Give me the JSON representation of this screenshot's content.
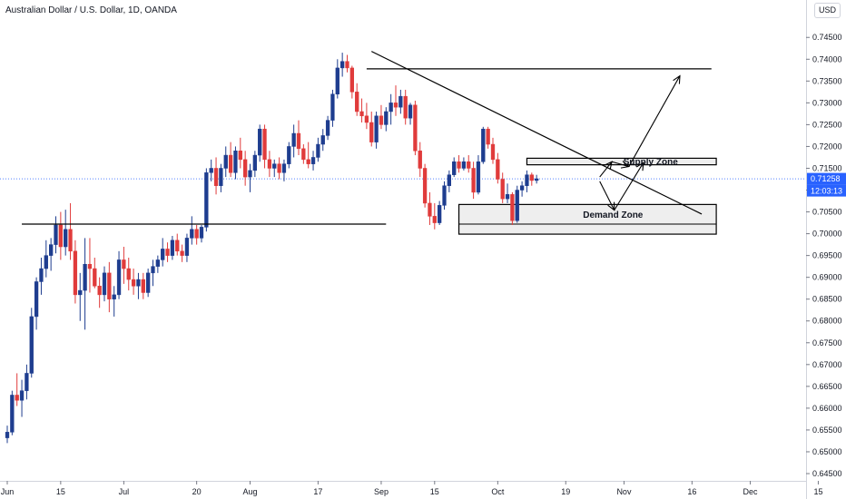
{
  "header": {
    "title": "Australian Dollar / U.S. Dollar, 1D, OANDA",
    "currency_button": "USD"
  },
  "chart_data": {
    "type": "candlestick",
    "title": "Australian Dollar / U.S. Dollar, 1D, OANDA",
    "ylim": [
      0.645,
      0.7515
    ],
    "y_ticks": [
      "0.74500",
      "0.74000",
      "0.73500",
      "0.73000",
      "0.72500",
      "0.72000",
      "0.71500",
      "0.71000",
      "0.70500",
      "0.70000",
      "0.69500",
      "0.69000",
      "0.68500",
      "0.68000",
      "0.67500",
      "0.67000",
      "0.66500",
      "0.66000",
      "0.65500",
      "0.65000",
      "0.64500"
    ],
    "x_ticks": [
      "Jun",
      "15",
      "Jul",
      "20",
      "Aug",
      "17",
      "Sep",
      "15",
      "Oct",
      "19",
      "Nov",
      "16",
      "Dec",
      "15"
    ],
    "x_tick_days": [
      0,
      11,
      24,
      39,
      50,
      64,
      77,
      88,
      101,
      115,
      127,
      141,
      153,
      167
    ],
    "last_day": 121,
    "current_price": "0.71258",
    "countdown": "12:03:13",
    "colors": {
      "up": "#1e3d8f",
      "down": "#e03b3b",
      "price_line": "#2962ff",
      "zone_fill": "#e8e8e8",
      "drawing": "#000000"
    },
    "drawings": {
      "support_line": {
        "day_start": 3,
        "day_end": 78,
        "price": 0.7022
      },
      "resistance_line": {
        "day_start": 74,
        "day_end": 145,
        "price": 0.7378
      },
      "trendline": {
        "start": [
          75,
          0.7418
        ],
        "end": [
          143,
          0.7045
        ]
      },
      "demand_zone": {
        "label": "Demand Zone",
        "day_start": 93,
        "day_end": 146,
        "price_top": 0.7067,
        "price_bottom": 0.6999
      },
      "supply_zone": {
        "label": "Supply Zone",
        "day_start": 107,
        "day_end": 146,
        "price_top": 0.7173,
        "price_bottom": 0.7158
      },
      "arrows": [
        {
          "from": [
            122,
            0.713
          ],
          "to": [
            124.5,
            0.7165
          ]
        },
        {
          "from": [
            124.5,
            0.7165
          ],
          "to": [
            128,
            0.7154
          ]
        },
        {
          "from": [
            128,
            0.7154
          ],
          "to": [
            138.5,
            0.7362
          ]
        },
        {
          "from": [
            122,
            0.712
          ],
          "to": [
            125,
            0.7054
          ]
        },
        {
          "from": [
            125,
            0.7054
          ],
          "to": [
            131,
            0.7163
          ]
        }
      ]
    },
    "candles": [
      {
        "o": 0.6532,
        "h": 0.656,
        "l": 0.652,
        "c": 0.6545
      },
      {
        "o": 0.6545,
        "h": 0.664,
        "l": 0.6538,
        "c": 0.663
      },
      {
        "o": 0.663,
        "h": 0.668,
        "l": 0.6605,
        "c": 0.6618
      },
      {
        "o": 0.6618,
        "h": 0.6665,
        "l": 0.658,
        "c": 0.664
      },
      {
        "o": 0.664,
        "h": 0.67,
        "l": 0.662,
        "c": 0.668
      },
      {
        "o": 0.668,
        "h": 0.683,
        "l": 0.667,
        "c": 0.681
      },
      {
        "o": 0.681,
        "h": 0.69,
        "l": 0.678,
        "c": 0.689
      },
      {
        "o": 0.689,
        "h": 0.6945,
        "l": 0.686,
        "c": 0.692
      },
      {
        "o": 0.692,
        "h": 0.6985,
        "l": 0.69,
        "c": 0.695
      },
      {
        "o": 0.695,
        "h": 0.699,
        "l": 0.6915,
        "c": 0.6975
      },
      {
        "o": 0.6975,
        "h": 0.704,
        "l": 0.6955,
        "c": 0.702
      },
      {
        "o": 0.702,
        "h": 0.705,
        "l": 0.694,
        "c": 0.697
      },
      {
        "o": 0.697,
        "h": 0.7055,
        "l": 0.695,
        "c": 0.701
      },
      {
        "o": 0.701,
        "h": 0.707,
        "l": 0.694,
        "c": 0.696
      },
      {
        "o": 0.696,
        "h": 0.6985,
        "l": 0.684,
        "c": 0.686
      },
      {
        "o": 0.686,
        "h": 0.691,
        "l": 0.68,
        "c": 0.687
      },
      {
        "o": 0.687,
        "h": 0.699,
        "l": 0.678,
        "c": 0.693
      },
      {
        "o": 0.693,
        "h": 0.699,
        "l": 0.6865,
        "c": 0.692
      },
      {
        "o": 0.692,
        "h": 0.6945,
        "l": 0.6875,
        "c": 0.688
      },
      {
        "o": 0.688,
        "h": 0.69,
        "l": 0.683,
        "c": 0.686
      },
      {
        "o": 0.686,
        "h": 0.6925,
        "l": 0.6845,
        "c": 0.691
      },
      {
        "o": 0.691,
        "h": 0.6935,
        "l": 0.682,
        "c": 0.685
      },
      {
        "o": 0.685,
        "h": 0.688,
        "l": 0.681,
        "c": 0.686
      },
      {
        "o": 0.686,
        "h": 0.696,
        "l": 0.685,
        "c": 0.694
      },
      {
        "o": 0.694,
        "h": 0.697,
        "l": 0.6885,
        "c": 0.692
      },
      {
        "o": 0.692,
        "h": 0.6945,
        "l": 0.687,
        "c": 0.6895
      },
      {
        "o": 0.6895,
        "h": 0.692,
        "l": 0.686,
        "c": 0.688
      },
      {
        "o": 0.688,
        "h": 0.691,
        "l": 0.685,
        "c": 0.6895
      },
      {
        "o": 0.6895,
        "h": 0.691,
        "l": 0.685,
        "c": 0.6865
      },
      {
        "o": 0.6865,
        "h": 0.692,
        "l": 0.6855,
        "c": 0.691
      },
      {
        "o": 0.691,
        "h": 0.694,
        "l": 0.688,
        "c": 0.6925
      },
      {
        "o": 0.6925,
        "h": 0.695,
        "l": 0.691,
        "c": 0.694
      },
      {
        "o": 0.694,
        "h": 0.699,
        "l": 0.6925,
        "c": 0.6965
      },
      {
        "o": 0.6965,
        "h": 0.698,
        "l": 0.6935,
        "c": 0.695
      },
      {
        "o": 0.695,
        "h": 0.6995,
        "l": 0.694,
        "c": 0.6985
      },
      {
        "o": 0.6985,
        "h": 0.7,
        "l": 0.695,
        "c": 0.696
      },
      {
        "o": 0.696,
        "h": 0.6975,
        "l": 0.6935,
        "c": 0.695
      },
      {
        "o": 0.695,
        "h": 0.7,
        "l": 0.6935,
        "c": 0.699
      },
      {
        "o": 0.699,
        "h": 0.704,
        "l": 0.6975,
        "c": 0.701
      },
      {
        "o": 0.701,
        "h": 0.702,
        "l": 0.6975,
        "c": 0.699
      },
      {
        "o": 0.699,
        "h": 0.702,
        "l": 0.698,
        "c": 0.7015
      },
      {
        "o": 0.7015,
        "h": 0.715,
        "l": 0.7005,
        "c": 0.714
      },
      {
        "o": 0.714,
        "h": 0.717,
        "l": 0.712,
        "c": 0.715
      },
      {
        "o": 0.715,
        "h": 0.7175,
        "l": 0.709,
        "c": 0.711
      },
      {
        "o": 0.711,
        "h": 0.716,
        "l": 0.7095,
        "c": 0.715
      },
      {
        "o": 0.715,
        "h": 0.72,
        "l": 0.713,
        "c": 0.718
      },
      {
        "o": 0.718,
        "h": 0.721,
        "l": 0.713,
        "c": 0.714
      },
      {
        "o": 0.714,
        "h": 0.72,
        "l": 0.7125,
        "c": 0.719
      },
      {
        "o": 0.719,
        "h": 0.722,
        "l": 0.715,
        "c": 0.717
      },
      {
        "o": 0.717,
        "h": 0.719,
        "l": 0.711,
        "c": 0.713
      },
      {
        "o": 0.713,
        "h": 0.716,
        "l": 0.7095,
        "c": 0.7145
      },
      {
        "o": 0.7145,
        "h": 0.719,
        "l": 0.713,
        "c": 0.718
      },
      {
        "o": 0.718,
        "h": 0.725,
        "l": 0.7165,
        "c": 0.724
      },
      {
        "o": 0.724,
        "h": 0.725,
        "l": 0.715,
        "c": 0.717
      },
      {
        "o": 0.717,
        "h": 0.719,
        "l": 0.713,
        "c": 0.715
      },
      {
        "o": 0.715,
        "h": 0.717,
        "l": 0.713,
        "c": 0.716
      },
      {
        "o": 0.716,
        "h": 0.7175,
        "l": 0.7125,
        "c": 0.714
      },
      {
        "o": 0.714,
        "h": 0.717,
        "l": 0.712,
        "c": 0.716
      },
      {
        "o": 0.716,
        "h": 0.721,
        "l": 0.715,
        "c": 0.72
      },
      {
        "o": 0.72,
        "h": 0.725,
        "l": 0.7175,
        "c": 0.723
      },
      {
        "o": 0.723,
        "h": 0.726,
        "l": 0.718,
        "c": 0.7195
      },
      {
        "o": 0.7195,
        "h": 0.7205,
        "l": 0.716,
        "c": 0.717
      },
      {
        "o": 0.717,
        "h": 0.721,
        "l": 0.715,
        "c": 0.716
      },
      {
        "o": 0.716,
        "h": 0.719,
        "l": 0.7145,
        "c": 0.7175
      },
      {
        "o": 0.7175,
        "h": 0.722,
        "l": 0.7165,
        "c": 0.7205
      },
      {
        "o": 0.7205,
        "h": 0.724,
        "l": 0.719,
        "c": 0.7225
      },
      {
        "o": 0.7225,
        "h": 0.727,
        "l": 0.7215,
        "c": 0.726
      },
      {
        "o": 0.726,
        "h": 0.733,
        "l": 0.7245,
        "c": 0.732
      },
      {
        "o": 0.732,
        "h": 0.74,
        "l": 0.731,
        "c": 0.738
      },
      {
        "o": 0.738,
        "h": 0.7415,
        "l": 0.736,
        "c": 0.7395
      },
      {
        "o": 0.7395,
        "h": 0.741,
        "l": 0.737,
        "c": 0.738
      },
      {
        "o": 0.738,
        "h": 0.7385,
        "l": 0.731,
        "c": 0.7325
      },
      {
        "o": 0.7325,
        "h": 0.7345,
        "l": 0.727,
        "c": 0.728
      },
      {
        "o": 0.728,
        "h": 0.731,
        "l": 0.7255,
        "c": 0.727
      },
      {
        "o": 0.727,
        "h": 0.73,
        "l": 0.724,
        "c": 0.7255
      },
      {
        "o": 0.7255,
        "h": 0.728,
        "l": 0.72,
        "c": 0.721
      },
      {
        "o": 0.721,
        "h": 0.728,
        "l": 0.7195,
        "c": 0.727
      },
      {
        "o": 0.727,
        "h": 0.7295,
        "l": 0.724,
        "c": 0.725
      },
      {
        "o": 0.725,
        "h": 0.729,
        "l": 0.7235,
        "c": 0.728
      },
      {
        "o": 0.728,
        "h": 0.732,
        "l": 0.725,
        "c": 0.73
      },
      {
        "o": 0.73,
        "h": 0.734,
        "l": 0.727,
        "c": 0.729
      },
      {
        "o": 0.729,
        "h": 0.733,
        "l": 0.7275,
        "c": 0.7315
      },
      {
        "o": 0.7315,
        "h": 0.733,
        "l": 0.725,
        "c": 0.7265
      },
      {
        "o": 0.7265,
        "h": 0.73,
        "l": 0.725,
        "c": 0.7295
      },
      {
        "o": 0.7295,
        "h": 0.7305,
        "l": 0.718,
        "c": 0.719
      },
      {
        "o": 0.719,
        "h": 0.721,
        "l": 0.713,
        "c": 0.715
      },
      {
        "o": 0.715,
        "h": 0.716,
        "l": 0.706,
        "c": 0.707
      },
      {
        "o": 0.707,
        "h": 0.7095,
        "l": 0.702,
        "c": 0.704
      },
      {
        "o": 0.704,
        "h": 0.707,
        "l": 0.701,
        "c": 0.7025
      },
      {
        "o": 0.7025,
        "h": 0.7075,
        "l": 0.702,
        "c": 0.7065
      },
      {
        "o": 0.7065,
        "h": 0.712,
        "l": 0.7055,
        "c": 0.711
      },
      {
        "o": 0.711,
        "h": 0.7145,
        "l": 0.7095,
        "c": 0.7135
      },
      {
        "o": 0.7135,
        "h": 0.7175,
        "l": 0.713,
        "c": 0.7165
      },
      {
        "o": 0.7165,
        "h": 0.718,
        "l": 0.714,
        "c": 0.715
      },
      {
        "o": 0.715,
        "h": 0.7175,
        "l": 0.7145,
        "c": 0.7165
      },
      {
        "o": 0.7165,
        "h": 0.718,
        "l": 0.714,
        "c": 0.715
      },
      {
        "o": 0.715,
        "h": 0.7165,
        "l": 0.708,
        "c": 0.7095
      },
      {
        "o": 0.7095,
        "h": 0.718,
        "l": 0.709,
        "c": 0.7165
      },
      {
        "o": 0.7165,
        "h": 0.7245,
        "l": 0.716,
        "c": 0.724
      },
      {
        "o": 0.724,
        "h": 0.7245,
        "l": 0.7195,
        "c": 0.7205
      },
      {
        "o": 0.7205,
        "h": 0.722,
        "l": 0.716,
        "c": 0.717
      },
      {
        "o": 0.717,
        "h": 0.7185,
        "l": 0.7115,
        "c": 0.7125
      },
      {
        "o": 0.7125,
        "h": 0.714,
        "l": 0.707,
        "c": 0.708
      },
      {
        "o": 0.708,
        "h": 0.7115,
        "l": 0.707,
        "c": 0.709
      },
      {
        "o": 0.709,
        "h": 0.7095,
        "l": 0.702,
        "c": 0.703
      },
      {
        "o": 0.703,
        "h": 0.711,
        "l": 0.7025,
        "c": 0.71
      },
      {
        "o": 0.71,
        "h": 0.712,
        "l": 0.7085,
        "c": 0.711
      },
      {
        "o": 0.711,
        "h": 0.7145,
        "l": 0.7095,
        "c": 0.7135
      },
      {
        "o": 0.7135,
        "h": 0.714,
        "l": 0.711,
        "c": 0.7122
      },
      {
        "o": 0.7122,
        "h": 0.7135,
        "l": 0.7115,
        "c": 0.7126
      }
    ]
  }
}
